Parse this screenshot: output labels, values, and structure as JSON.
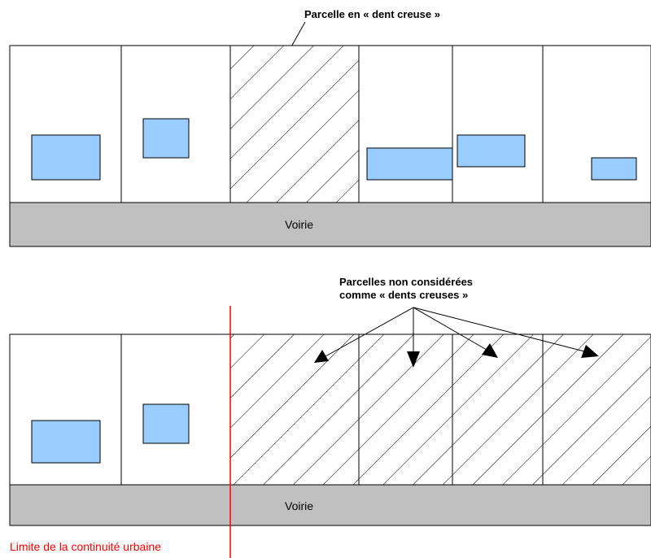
{
  "top_diagram": {
    "callout": "Parcelle en « dent creuse »",
    "road_label": "Voirie"
  },
  "bottom_diagram": {
    "callout_line1": "Parcelles non considérées",
    "callout_line2": "comme « dents creuses »",
    "road_label": "Voirie",
    "limit_label": "Limite de la continuité urbaine"
  },
  "colors": {
    "building": "#99ccff",
    "road": "#c0c0c0",
    "limit_line": "#ff0000"
  }
}
